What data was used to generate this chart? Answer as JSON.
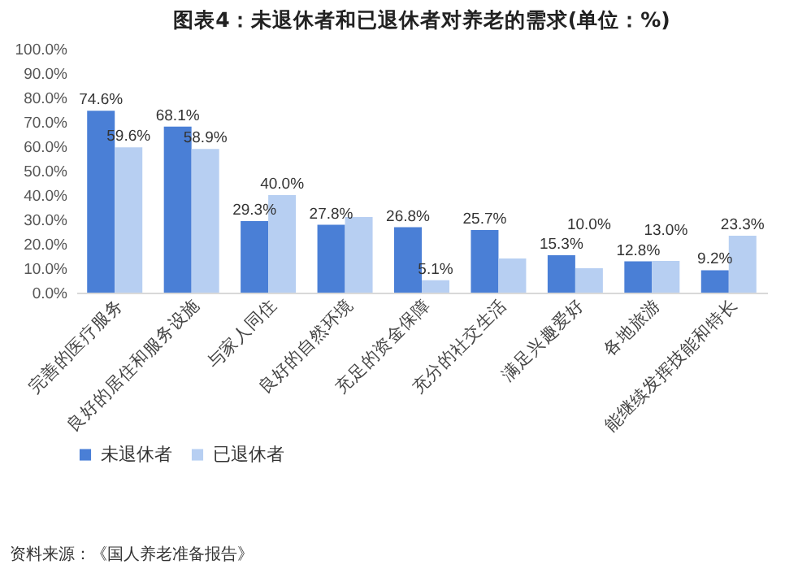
{
  "chart_data": {
    "type": "bar",
    "title": "图表4：未退休者和已退休者对养老的需求(单位：%)",
    "categories": [
      "完善的医疗服务",
      "良好的居住和服务设施",
      "与家人同住",
      "良好的自然环境",
      "充足的资金保障",
      "充分的社交生活",
      "满足兴趣爱好",
      "各地旅游",
      "能继续发挥技能和特长"
    ],
    "series": [
      {
        "name": "未退休者",
        "color": "#4a7fd6",
        "values": [
          74.6,
          68.1,
          29.3,
          27.8,
          26.8,
          25.7,
          15.3,
          12.8,
          9.2
        ],
        "value_labels": [
          "74.6%",
          "68.1%",
          "29.3%",
          "27.8%",
          "26.8%",
          "25.7%",
          "15.3%",
          "12.8%",
          "9.2%"
        ]
      },
      {
        "name": "已退休者",
        "color": "#b7cff2",
        "values": [
          59.6,
          58.9,
          40.0,
          31.0,
          5.1,
          14.0,
          10.0,
          13.0,
          23.3
        ],
        "value_labels": [
          "59.6%",
          "58.9%",
          "40.0%",
          null,
          "5.1%",
          null,
          "10.0%",
          "13.0%",
          "23.3%"
        ]
      }
    ],
    "ylim": [
      0,
      100
    ],
    "yticks": [
      {
        "value": 0,
        "label": "0.0%"
      },
      {
        "value": 10,
        "label": "10.0%"
      },
      {
        "value": 20,
        "label": "20.0%"
      },
      {
        "value": 30,
        "label": "30.0%"
      },
      {
        "value": 40,
        "label": "40.0%"
      },
      {
        "value": 50,
        "label": "50.0%"
      },
      {
        "value": 60,
        "label": "60.0%"
      },
      {
        "value": 70,
        "label": "70.0%"
      },
      {
        "value": 80,
        "label": "80.0%"
      },
      {
        "value": 90,
        "label": "90.0%"
      },
      {
        "value": 100,
        "label": "100.0%"
      }
    ],
    "grid": false,
    "legend": "bottom",
    "annotations": [
      "资料来源：《国人养老准备报告》"
    ]
  }
}
